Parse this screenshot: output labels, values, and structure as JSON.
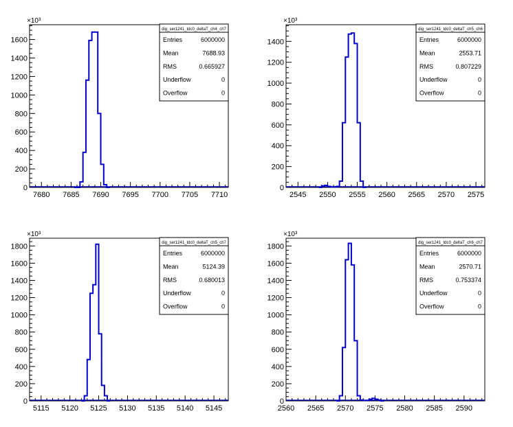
{
  "chart_data": [
    {
      "type": "histogram",
      "title": "dig_ser1241_tdc0_deltaT_ch4_ch7",
      "exponent_label": "×10³",
      "xlim": [
        7678,
        7711.5
      ],
      "ylim": [
        0,
        1760
      ],
      "xticks": [
        7680,
        7685,
        7690,
        7695,
        7700,
        7705,
        7710
      ],
      "yticks": [
        0,
        200,
        400,
        600,
        800,
        1000,
        1200,
        1400,
        1600
      ],
      "bins": [
        [
          7685.5,
          7686.5,
          0
        ],
        [
          7686.5,
          7687,
          60
        ],
        [
          7687,
          7687.5,
          380
        ],
        [
          7687.5,
          7688,
          1160
        ],
        [
          7688,
          7688.5,
          1590
        ],
        [
          7688.5,
          7689,
          1680
        ],
        [
          7689,
          7689.5,
          1680
        ],
        [
          7689.5,
          7690,
          800
        ],
        [
          7690,
          7690.5,
          250
        ],
        [
          7690.5,
          7691,
          30
        ],
        [
          7691,
          7691.5,
          0
        ]
      ],
      "stats": [
        {
          "label": "Entries",
          "value": "6000000"
        },
        {
          "label": "Mean",
          "value": "7688.93"
        },
        {
          "label": "RMS",
          "value": "0.665927"
        },
        {
          "label": "Underflow",
          "value": "0"
        },
        {
          "label": "Overflow",
          "value": "0"
        }
      ]
    },
    {
      "type": "histogram",
      "title": "dig_ser1241_tdc0_deltaT_ch5_ch6",
      "exponent_label": "×10³",
      "xlim": [
        2543,
        2576.5
      ],
      "ylim": [
        0,
        1560
      ],
      "xticks": [
        2545,
        2550,
        2555,
        2560,
        2565,
        2570,
        2575
      ],
      "yticks": [
        0,
        200,
        400,
        600,
        800,
        1000,
        1200,
        1400
      ],
      "bins": [
        [
          2548.5,
          2549,
          0
        ],
        [
          2549,
          2549.5,
          15
        ],
        [
          2549.5,
          2550,
          20
        ],
        [
          2550,
          2550.5,
          10
        ],
        [
          2550.5,
          2551,
          5
        ],
        [
          2551,
          2551.5,
          5
        ],
        [
          2551.5,
          2552,
          10
        ],
        [
          2552,
          2552.5,
          60
        ],
        [
          2552.5,
          2553,
          620
        ],
        [
          2553,
          2553.5,
          1250
        ],
        [
          2553.5,
          2554,
          1470
        ],
        [
          2554,
          2554.5,
          1480
        ],
        [
          2554.5,
          2555,
          1380
        ],
        [
          2555,
          2555.5,
          620
        ],
        [
          2555.5,
          2556,
          60
        ],
        [
          2556,
          2556.5,
          0
        ]
      ],
      "stats": [
        {
          "label": "Entries",
          "value": "6000000"
        },
        {
          "label": "Mean",
          "value": "2553.71"
        },
        {
          "label": "RMS",
          "value": "0.807229"
        },
        {
          "label": "Underflow",
          "value": "0"
        },
        {
          "label": "Overflow",
          "value": "0"
        }
      ]
    },
    {
      "type": "histogram",
      "title": "dig_ser1241_tdc0_deltaT_ch5_ch7",
      "exponent_label": "×10³",
      "xlim": [
        5113,
        5147.5
      ],
      "ylim": [
        0,
        1890
      ],
      "xticks": [
        5115,
        5120,
        5125,
        5130,
        5135,
        5140,
        5145
      ],
      "yticks": [
        0,
        200,
        400,
        600,
        800,
        1000,
        1200,
        1400,
        1600,
        1800
      ],
      "bins": [
        [
          5122,
          5122.5,
          0
        ],
        [
          5122.5,
          5123,
          60
        ],
        [
          5123,
          5123.5,
          480
        ],
        [
          5123.5,
          5124,
          1250
        ],
        [
          5124,
          5124.5,
          1350
        ],
        [
          5124.5,
          5125,
          1820
        ],
        [
          5125,
          5125.5,
          780
        ],
        [
          5125.5,
          5126,
          180
        ],
        [
          5126,
          5126.5,
          60
        ],
        [
          5126.5,
          5127,
          0
        ]
      ],
      "stats": [
        {
          "label": "Entries",
          "value": "6000000"
        },
        {
          "label": "Mean",
          "value": "5124.39"
        },
        {
          "label": "RMS",
          "value": "0.680013"
        },
        {
          "label": "Underflow",
          "value": "0"
        },
        {
          "label": "Overflow",
          "value": "0"
        }
      ]
    },
    {
      "type": "histogram",
      "title": "dig_ser1241_tdc0_deltaT_ch6_ch7",
      "exponent_label": "×10³",
      "xlim": [
        2560,
        2593.5
      ],
      "ylim": [
        0,
        1890
      ],
      "xticks": [
        2560,
        2565,
        2570,
        2575,
        2580,
        2585,
        2590
      ],
      "yticks": [
        0,
        200,
        400,
        600,
        800,
        1000,
        1200,
        1400,
        1600,
        1800
      ],
      "bins": [
        [
          2568.5,
          2569,
          0
        ],
        [
          2569,
          2569.5,
          60
        ],
        [
          2569.5,
          2570,
          620
        ],
        [
          2570,
          2570.5,
          1640
        ],
        [
          2570.5,
          2571,
          1830
        ],
        [
          2571,
          2571.5,
          1580
        ],
        [
          2571.5,
          2572,
          700
        ],
        [
          2572,
          2572.5,
          60
        ],
        [
          2572.5,
          2573,
          10
        ],
        [
          2573,
          2573.5,
          5
        ],
        [
          2573.5,
          2574,
          5
        ],
        [
          2574,
          2574.5,
          20
        ],
        [
          2574.5,
          2575,
          30
        ],
        [
          2575,
          2575.5,
          20
        ],
        [
          2575.5,
          2576,
          10
        ],
        [
          2576,
          2576.5,
          0
        ]
      ],
      "stats": [
        {
          "label": "Entries",
          "value": "6000000"
        },
        {
          "label": "Mean",
          "value": "2570.71"
        },
        {
          "label": "RMS",
          "value": "0.753374"
        },
        {
          "label": "Underflow",
          "value": "0"
        },
        {
          "label": "Overflow",
          "value": "0"
        }
      ]
    }
  ]
}
